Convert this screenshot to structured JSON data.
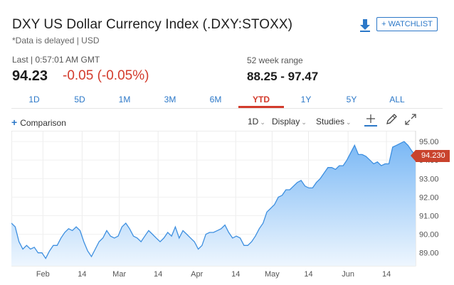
{
  "header": {
    "title": "DXY US Dollar Currency Index (.DXY:STOXX)",
    "subtitle": "*Data is delayed | USD",
    "watchlist_label": "+ WATCHLIST",
    "download_icon": "download-icon"
  },
  "quote": {
    "last_label": "Last | 0:57:01 AM GMT",
    "last_price": "94.23",
    "change": "-0.05 (-0.05%)",
    "week52_label": "52 week range",
    "week52_range": "88.25 - 97.47",
    "change_color": "#d33b2c"
  },
  "tabs": [
    {
      "label": "1D",
      "active": false
    },
    {
      "label": "5D",
      "active": false
    },
    {
      "label": "1M",
      "active": false
    },
    {
      "label": "3M",
      "active": false
    },
    {
      "label": "6M",
      "active": false
    },
    {
      "label": "YTD",
      "active": true
    },
    {
      "label": "1Y",
      "active": false
    },
    {
      "label": "5Y",
      "active": false
    },
    {
      "label": "ALL",
      "active": false
    }
  ],
  "toolbar": {
    "comparison_label": "Comparison",
    "interval_label": "1D",
    "display_label": "Display",
    "studies_label": "Studies",
    "crosshair_icon": "crosshair-icon",
    "draw_icon": "pencil-icon",
    "expand_icon": "expand-icon"
  },
  "chart_data": {
    "type": "area",
    "series": [
      {
        "values": [
          90.6,
          90.4,
          89.6,
          89.2,
          89.4,
          89.2,
          89.3,
          89.0,
          89.0,
          88.7,
          89.1,
          89.4,
          89.4,
          89.8,
          90.1,
          90.3,
          90.2,
          90.4,
          90.2,
          89.6,
          89.1,
          88.8,
          89.2,
          89.6,
          89.8,
          90.2,
          89.9,
          89.8,
          89.9,
          90.4,
          90.6,
          90.3,
          89.9,
          89.8,
          89.6,
          89.9,
          90.2,
          90.0,
          89.8,
          89.6,
          89.8,
          90.1,
          89.9,
          90.4,
          89.8,
          90.2,
          90.0,
          89.8,
          89.6,
          89.2,
          89.4,
          90.0,
          90.1,
          90.1,
          90.2,
          90.3,
          90.5,
          90.1,
          89.8,
          89.9,
          89.8,
          89.4,
          89.4,
          89.6,
          89.9,
          90.3,
          90.6,
          91.2,
          91.4,
          91.6,
          92.0,
          92.1,
          92.4,
          92.4,
          92.6,
          92.8,
          92.9,
          92.6,
          92.5,
          92.5,
          92.8,
          93.0,
          93.3,
          93.6,
          93.6,
          93.5,
          93.7,
          93.7,
          94.0,
          94.4,
          94.8,
          94.3,
          94.3,
          94.2,
          94.0,
          93.8,
          93.9,
          93.7,
          93.8,
          93.8,
          94.7,
          94.8,
          94.9,
          95.0,
          94.8,
          94.5,
          94.23
        ]
      }
    ],
    "x_tick_labels": [
      "Feb",
      "14",
      "Mar",
      "14",
      "Apr",
      "14",
      "May",
      "14",
      "Jun",
      "14"
    ],
    "y_tick_labels": [
      "95.00",
      "94.00",
      "93.00",
      "92.00",
      "91.00",
      "90.00",
      "89.00"
    ],
    "ylim": [
      88.3,
      95.35
    ],
    "last_value_label": "94.230",
    "line_color": "#3d8fe0",
    "fill_top_color": "#7ab8f5",
    "fill_bottom_color": "#eef6fe",
    "grid": true
  }
}
